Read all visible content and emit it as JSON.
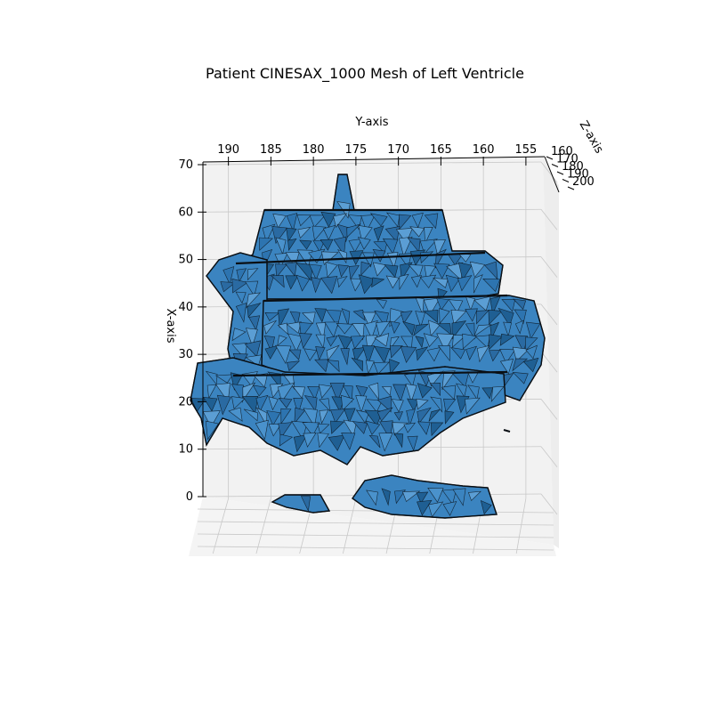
{
  "chart_data": {
    "type": "surface3d",
    "title": "Patient CINESAX_1000 Mesh of Left Ventricle",
    "xlabel": "X-axis",
    "ylabel": "Y-axis",
    "zlabel": "Z-axis",
    "x_ticks": [
      "0",
      "10",
      "20",
      "30",
      "40",
      "50",
      "60",
      "70"
    ],
    "y_ticks": [
      "190",
      "185",
      "180",
      "175",
      "170",
      "165",
      "160",
      "155"
    ],
    "z_ticks": [
      "160",
      "170",
      "180",
      "190",
      "200"
    ],
    "xlim": [
      0,
      70
    ],
    "ylim": [
      193,
      153
    ],
    "zlim": [
      160,
      200
    ],
    "grid": true,
    "colors": {
      "face": "#3b84c0",
      "face_light": "#5b9ed4",
      "face_dark": "#1f5f93",
      "edge": "#0a0f14",
      "pane": "#f2f2f2",
      "grid": "#c8c8c8"
    }
  }
}
